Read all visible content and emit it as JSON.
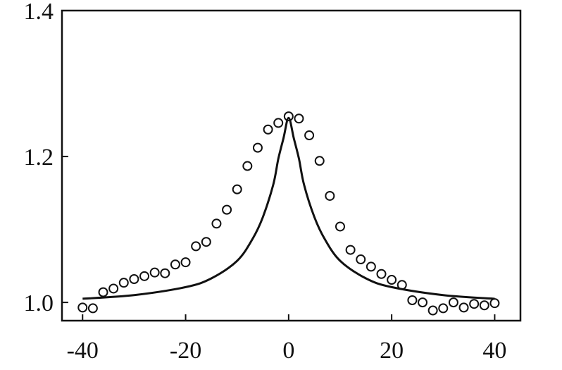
{
  "chart_data": {
    "type": "scatter",
    "title": "",
    "xlabel": "",
    "ylabel": "",
    "xlim": [
      -44,
      45
    ],
    "ylim": [
      0.975,
      1.4
    ],
    "x_ticks": [
      -40,
      -20,
      0,
      20,
      40
    ],
    "x_tick_labels": [
      "-40",
      "-20",
      "0",
      "20",
      "40"
    ],
    "y_ticks": [
      1.0,
      1.2,
      1.4
    ],
    "y_tick_labels": [
      "1.0",
      "1.2",
      "1.4"
    ],
    "grid": false,
    "legend": "none",
    "series": [
      {
        "kind": "markers",
        "marker": "open-circle",
        "x": [
          -40,
          -38,
          -36,
          -34,
          -32,
          -30,
          -28,
          -26,
          -24,
          -22,
          -20,
          -18,
          -16,
          -14,
          -12,
          -10,
          -8,
          -6,
          -4,
          -2,
          0,
          2,
          4,
          6,
          8,
          10,
          12,
          14,
          16,
          18,
          20,
          22,
          24,
          26,
          28,
          30,
          32,
          34,
          36,
          38,
          40
        ],
        "y": [
          0.993,
          0.992,
          1.014,
          1.019,
          1.027,
          1.032,
          1.036,
          1.041,
          1.04,
          1.052,
          1.055,
          1.077,
          1.083,
          1.108,
          1.127,
          1.155,
          1.187,
          1.212,
          1.237,
          1.246,
          1.255,
          1.252,
          1.229,
          1.194,
          1.146,
          1.104,
          1.072,
          1.059,
          1.049,
          1.039,
          1.031,
          1.024,
          1.003,
          1.0,
          0.989,
          0.992,
          1.0,
          0.993,
          0.998,
          0.996,
          0.999
        ]
      },
      {
        "kind": "line",
        "x": [
          -40,
          -30,
          -20,
          -15,
          -10,
          -7,
          -5,
          -3,
          -2,
          -1,
          0,
          1,
          2,
          3,
          5,
          7,
          10,
          15,
          20,
          30,
          40
        ],
        "y": [
          1.005,
          1.01,
          1.021,
          1.033,
          1.057,
          1.087,
          1.117,
          1.161,
          1.197,
          1.225,
          1.253,
          1.225,
          1.197,
          1.161,
          1.117,
          1.087,
          1.057,
          1.033,
          1.021,
          1.01,
          1.005
        ]
      }
    ]
  }
}
